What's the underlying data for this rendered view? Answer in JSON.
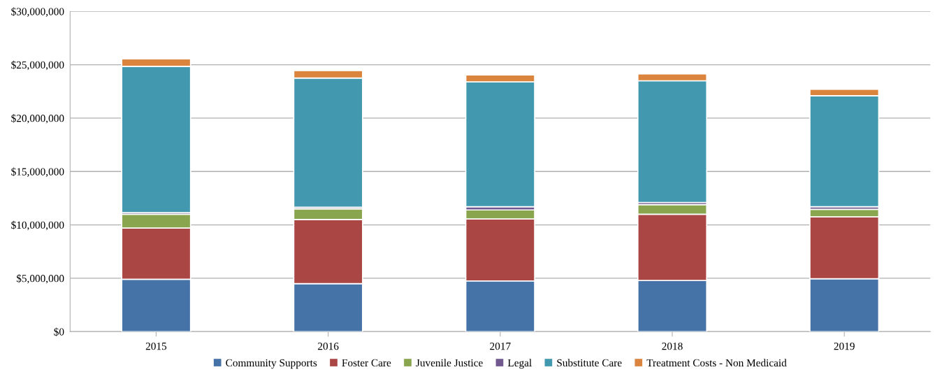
{
  "chart_data": {
    "type": "bar",
    "stacked": true,
    "categories": [
      "2015",
      "2016",
      "2017",
      "2018",
      "2019"
    ],
    "series": [
      {
        "name": "Community Supports",
        "color": "#4572a7",
        "values": [
          4900000,
          4500000,
          4750000,
          4800000,
          4950000
        ]
      },
      {
        "name": "Foster Care",
        "color": "#aa4643",
        "values": [
          4800000,
          6000000,
          5800000,
          6200000,
          5800000
        ]
      },
      {
        "name": "Juvenile Justice",
        "color": "#89a54e",
        "values": [
          1300000,
          1000000,
          850000,
          900000,
          700000
        ]
      },
      {
        "name": "Legal",
        "color": "#71588f",
        "values": [
          150000,
          150000,
          300000,
          200000,
          250000
        ]
      },
      {
        "name": "Substitute Care",
        "color": "#4198af",
        "values": [
          13700000,
          12100000,
          11700000,
          11400000,
          10400000
        ]
      },
      {
        "name": "Treatment Costs - Non Medicaid",
        "color": "#db843d",
        "values": [
          700000,
          700000,
          650000,
          650000,
          600000
        ]
      }
    ],
    "ylim": [
      0,
      30000000
    ],
    "yticks": [
      {
        "value": 0,
        "label": "$0"
      },
      {
        "value": 5000000,
        "label": "$5,000,000"
      },
      {
        "value": 10000000,
        "label": "$10,000,000"
      },
      {
        "value": 15000000,
        "label": "$15,000,000"
      },
      {
        "value": 20000000,
        "label": "$20,000,000"
      },
      {
        "value": 25000000,
        "label": "$25,000,000"
      },
      {
        "value": 30000000,
        "label": "$30,000,000"
      }
    ],
    "grid": "y",
    "legend": "bottom"
  }
}
